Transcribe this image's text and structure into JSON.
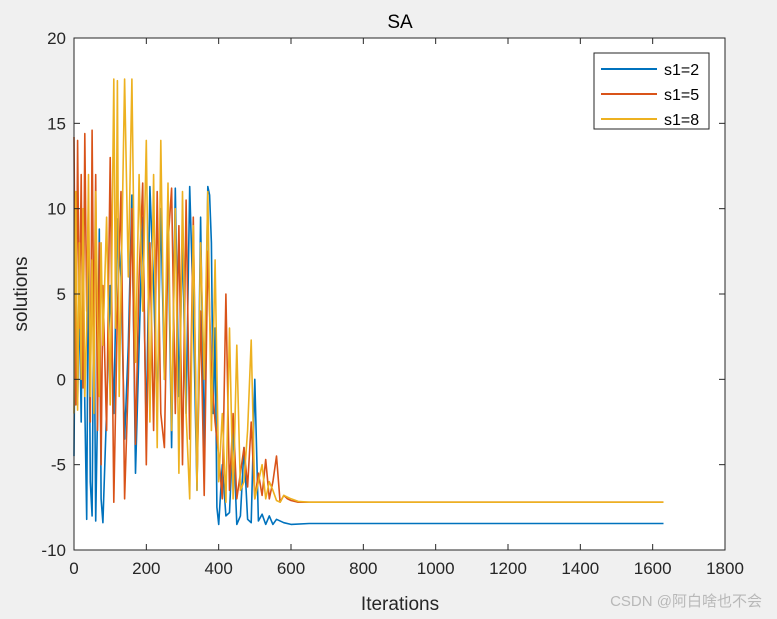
{
  "chart_data": {
    "type": "line",
    "title": "SA",
    "xlabel": "Iterations",
    "ylabel": "solutions",
    "xlim": [
      0,
      1800
    ],
    "ylim": [
      -10,
      20
    ],
    "xticks": [
      0,
      200,
      400,
      600,
      800,
      1000,
      1200,
      1400,
      1600,
      1800
    ],
    "yticks": [
      -10,
      -5,
      0,
      5,
      10,
      15,
      20
    ],
    "grid": false,
    "legend_position": "top-right",
    "series": [
      {
        "name": "s1=2",
        "color": "#0072BD",
        "x": [
          0,
          5,
          10,
          15,
          20,
          25,
          30,
          35,
          40,
          45,
          50,
          55,
          60,
          65,
          70,
          75,
          80,
          90,
          100,
          110,
          120,
          130,
          140,
          150,
          160,
          170,
          180,
          190,
          200,
          210,
          220,
          230,
          240,
          250,
          260,
          270,
          280,
          290,
          300,
          310,
          320,
          330,
          340,
          350,
          360,
          370,
          375,
          380,
          385,
          390,
          395,
          400,
          410,
          420,
          430,
          440,
          450,
          460,
          470,
          480,
          490,
          500,
          510,
          520,
          530,
          540,
          550,
          560,
          580,
          600,
          650,
          700,
          800,
          900,
          1000,
          1100,
          1200,
          1300,
          1400,
          1500,
          1630
        ],
        "y": [
          -4.5,
          10.5,
          -1.5,
          5,
          -2.5,
          8,
          -1.5,
          -8.2,
          9.5,
          -6,
          -8,
          6,
          -8.3,
          -2,
          8.8,
          -7,
          -8.4,
          -1.8,
          5.5,
          -2,
          9.4,
          6,
          -3.5,
          2,
          10.8,
          -5.5,
          2,
          9.5,
          -3.3,
          11.3,
          5.5,
          -2,
          10,
          0,
          9.5,
          -4,
          11.2,
          -1,
          8,
          -2,
          11.3,
          4,
          -6.5,
          9.5,
          -4.5,
          11.3,
          10.8,
          8,
          -2,
          3,
          -7.5,
          -8.5,
          -5,
          -8,
          -7.8,
          -3,
          -8.5,
          -8,
          -4,
          -8.2,
          -8.4,
          0,
          -8.3,
          -7.9,
          -8.5,
          -8,
          -8.5,
          -8.2,
          -8.4,
          -8.5,
          -8.45,
          -8.45,
          -8.45,
          -8.45,
          -8.45,
          -8.45,
          -8.45,
          -8.45,
          -8.45,
          -8.45,
          -8.45
        ]
      },
      {
        "name": "s1=5",
        "color": "#D95319",
        "x": [
          0,
          5,
          10,
          15,
          20,
          25,
          30,
          35,
          40,
          45,
          50,
          55,
          60,
          65,
          70,
          75,
          80,
          90,
          100,
          110,
          120,
          130,
          140,
          150,
          160,
          170,
          180,
          190,
          200,
          210,
          220,
          230,
          240,
          250,
          260,
          270,
          280,
          290,
          300,
          310,
          320,
          330,
          340,
          350,
          360,
          370,
          380,
          390,
          400,
          410,
          420,
          430,
          440,
          450,
          460,
          470,
          480,
          490,
          500,
          510,
          520,
          530,
          540,
          550,
          560,
          570,
          580,
          590,
          600,
          620,
          650,
          700,
          800,
          900,
          1000,
          1100,
          1200,
          1300,
          1400,
          1500,
          1630
        ],
        "y": [
          14.2,
          -1.5,
          14,
          3,
          12,
          -0.5,
          14.4,
          4,
          10.5,
          -2.5,
          14.6,
          2,
          12,
          -3,
          8,
          -5,
          5.5,
          -3,
          13,
          -7.2,
          4,
          11,
          -7,
          0,
          10,
          -3.8,
          6,
          11.5,
          -5,
          8,
          -3,
          11,
          -2,
          -4,
          8,
          11.2,
          -2,
          9,
          -5,
          10.5,
          -3.5,
          9.5,
          -6,
          4,
          -6.8,
          7.5,
          0.5,
          -2.5,
          -4.5,
          -7,
          5,
          -6.5,
          -2,
          -7,
          -5.5,
          -4,
          -6.3,
          -2.5,
          -7,
          -5.5,
          -6.8,
          -4.7,
          -7,
          -6,
          -4.5,
          -7.2,
          -6.8,
          -7,
          -7.1,
          -7.2,
          -7.2,
          -7.2,
          -7.2,
          -7.2,
          -7.2,
          -7.2,
          -7.2,
          -7.2,
          -7.2,
          -7.2,
          -7.2
        ]
      },
      {
        "name": "s1=8",
        "color": "#EDB120",
        "x": [
          0,
          5,
          10,
          15,
          20,
          25,
          30,
          35,
          40,
          45,
          50,
          55,
          60,
          65,
          70,
          75,
          80,
          90,
          100,
          110,
          115,
          120,
          125,
          130,
          140,
          150,
          160,
          170,
          180,
          190,
          200,
          210,
          220,
          230,
          240,
          250,
          260,
          270,
          280,
          290,
          300,
          310,
          320,
          330,
          340,
          350,
          360,
          370,
          380,
          390,
          400,
          410,
          420,
          430,
          440,
          450,
          460,
          470,
          480,
          490,
          500,
          510,
          520,
          530,
          540,
          550,
          560,
          570,
          580,
          600,
          620,
          650,
          700,
          800,
          900,
          1000,
          1100,
          1200,
          1300,
          1400,
          1500,
          1630
        ],
        "y": [
          -2,
          11,
          -1.8,
          8,
          0,
          10,
          -1,
          3,
          12,
          -1,
          7,
          -2,
          11,
          4,
          -1,
          8,
          2,
          9.5,
          -1.5,
          17.6,
          3,
          17.5,
          -1,
          5,
          17.6,
          6,
          17.6,
          1,
          12,
          4,
          14,
          -2.5,
          12,
          -4,
          14,
          0,
          11.5,
          -3,
          10,
          -5.5,
          11,
          -2,
          -7,
          9,
          -6.5,
          8,
          0,
          11,
          -3,
          7,
          -6,
          -2,
          -7.2,
          3,
          -7,
          2,
          -6.5,
          -6,
          -3,
          2.3,
          -7,
          -6,
          -5,
          -7,
          -6,
          -6.5,
          -7.1,
          -7.2,
          -6.8,
          -7,
          -7.15,
          -7.2,
          -7.2,
          -7.2,
          -7.2,
          -7.2,
          -7.2,
          -7.2,
          -7.2,
          -7.2,
          -7.2,
          -7.2
        ]
      }
    ]
  },
  "watermark": "CSDN @阿白啥也不会"
}
